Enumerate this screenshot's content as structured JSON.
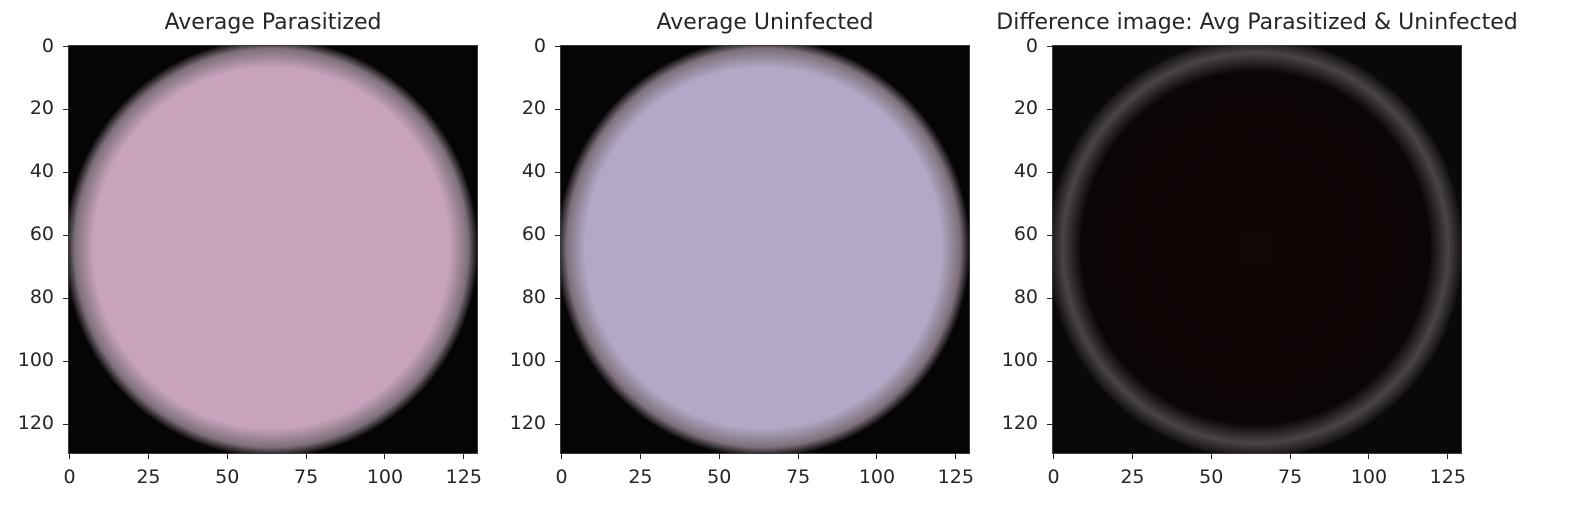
{
  "chart_data": [
    {
      "type": "image",
      "title": "Average Parasitized",
      "xticks": [
        0,
        25,
        50,
        75,
        100,
        125
      ],
      "yticks": [
        0,
        20,
        40,
        60,
        80,
        100,
        120
      ],
      "xlim": [
        -0.5,
        129.5
      ],
      "ylim": [
        129.5,
        -0.5
      ],
      "center_color": "#c8a3bb",
      "edge_color": "#000000"
    },
    {
      "type": "image",
      "title": "Average Uninfected",
      "xticks": [
        0,
        25,
        50,
        75,
        100,
        125
      ],
      "yticks": [
        0,
        20,
        40,
        60,
        80,
        100,
        120
      ],
      "xlim": [
        -0.5,
        129.5
      ],
      "ylim": [
        129.5,
        -0.5
      ],
      "center_color": "#b3a8c6",
      "edge_color": "#000000"
    },
    {
      "type": "image",
      "title": "Difference image: Avg Parasitized & Uninfected",
      "xticks": [
        0,
        25,
        50,
        75,
        100,
        125
      ],
      "yticks": [
        0,
        20,
        40,
        60,
        80,
        100,
        120
      ],
      "xlim": [
        -0.5,
        129.5
      ],
      "ylim": [
        129.5,
        -0.5
      ],
      "center_color": "#120606",
      "edge_color": "#4a4448"
    }
  ]
}
